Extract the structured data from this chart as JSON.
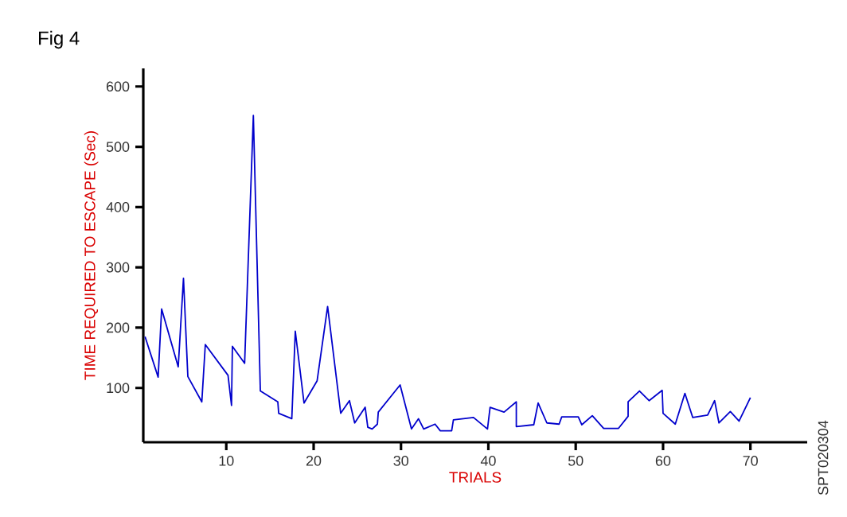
{
  "chart_data": {
    "type": "line",
    "title": "Fig 4",
    "xlabel": "TRIALS",
    "ylabel": "TIME REQUIRED TO ESCAPE (Sec)",
    "annotations": [
      "SPT020304"
    ],
    "xlim": [
      0.5,
      76.5
    ],
    "ylim": [
      10,
      630
    ],
    "xticks": [
      10,
      20,
      30,
      40,
      50,
      60,
      70
    ],
    "yticks": [
      100,
      200,
      300,
      400,
      500,
      600
    ],
    "grid": false,
    "marker": "none",
    "line_style": "solid",
    "series": [
      {
        "color": "#0000cc",
        "x": [
          0.7,
          2.2,
          2.6,
          4.5,
          5.1,
          5.6,
          7.2,
          7.6,
          10.2,
          10.6,
          10.7,
          12.1,
          13.1,
          13.9,
          15.9,
          16,
          17.5,
          17.9,
          18.9,
          20.4,
          21.6,
          23.1,
          24.1,
          24.7,
          25.9,
          26.2,
          26.7,
          27.3,
          27.4,
          29.9,
          31.2,
          32,
          32.6,
          33.9,
          34.5,
          35.8,
          36,
          38.3,
          39.9,
          40.2,
          41.8,
          43.2,
          43.2,
          45.2,
          45.7,
          46.7,
          48.1,
          48.4,
          50.3,
          50.7,
          51.9,
          53.2,
          54.9,
          56,
          56,
          57.3,
          58.4,
          59.9,
          60,
          61.4,
          62.5,
          63.4,
          65.1,
          65.9,
          66.4,
          67.7,
          68.7,
          70
        ],
        "values": [
          185,
          118,
          231,
          135,
          282,
          119,
          77,
          172,
          121,
          71,
          169,
          141,
          552,
          95,
          77,
          58,
          49,
          194,
          75,
          112,
          235,
          58,
          79,
          42,
          68,
          35,
          32,
          40,
          60,
          105,
          32,
          49,
          32,
          40,
          29,
          29,
          47,
          51,
          32,
          68,
          60,
          77,
          36,
          39,
          75,
          42,
          40,
          52,
          52,
          39,
          54,
          33,
          33,
          53,
          77,
          95,
          79,
          96,
          58,
          40,
          91,
          51,
          55,
          79,
          42,
          61,
          45,
          84
        ]
      }
    ]
  }
}
